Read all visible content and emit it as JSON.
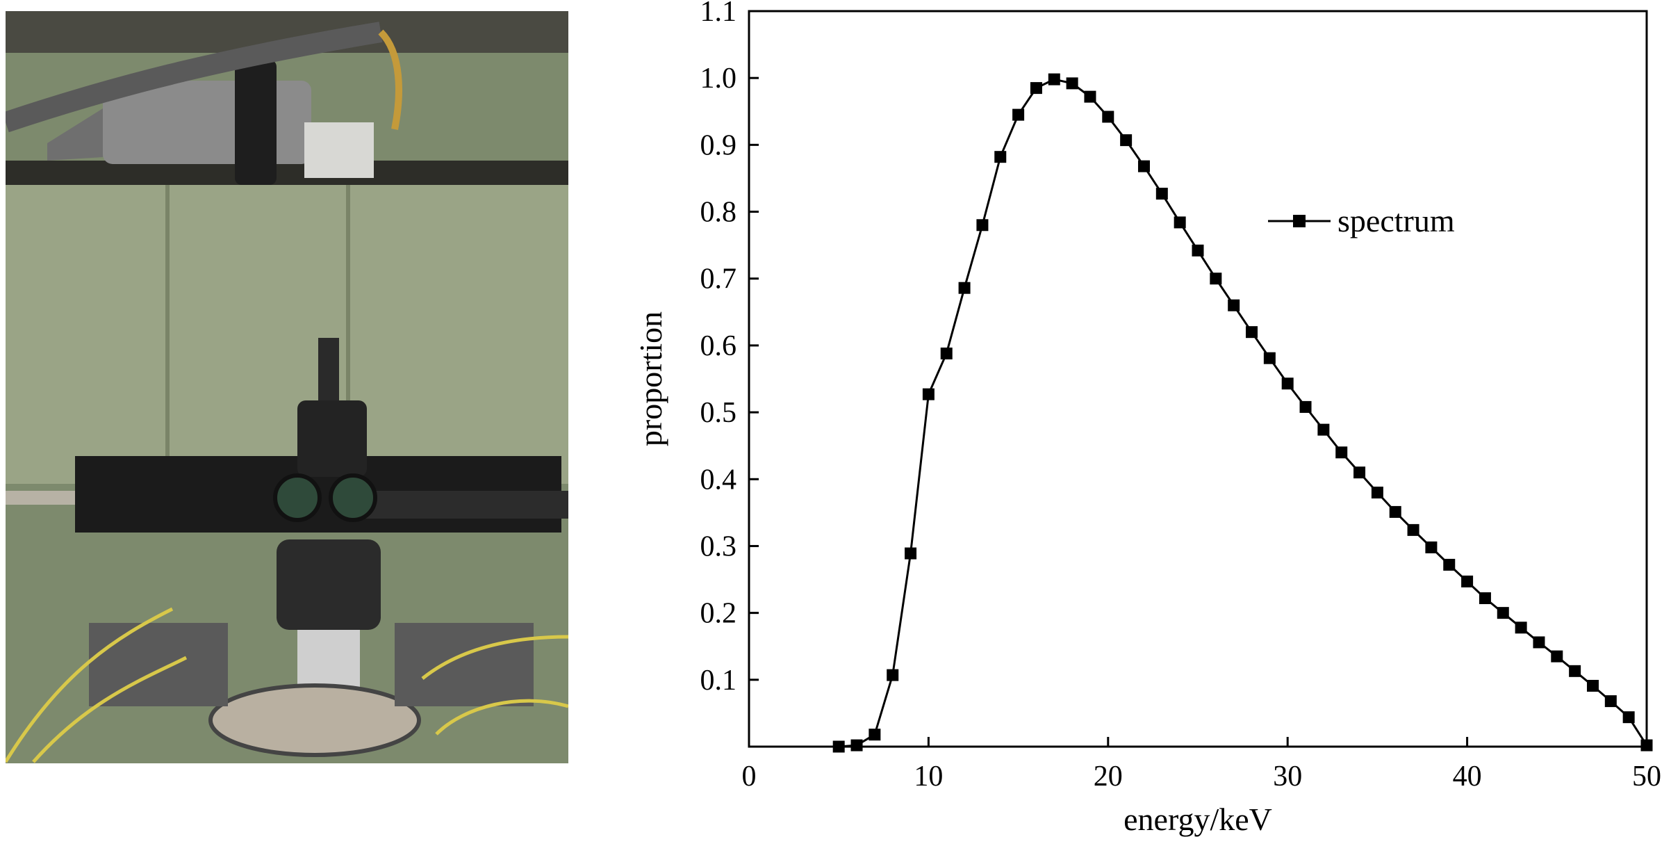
{
  "figure": {
    "photo": {
      "description_icon": "microscope-xray-setup-photo"
    }
  },
  "chart_data": {
    "type": "line",
    "title": "",
    "xlabel": "energy/keV",
    "ylabel": "proportion",
    "xlim": [
      0,
      50
    ],
    "ylim": [
      0,
      1.1
    ],
    "xticks": [
      0,
      10,
      20,
      30,
      40,
      50
    ],
    "xtick_labels": [
      "0",
      "10",
      "20",
      "30",
      "40",
      "50"
    ],
    "yticks": [
      0.1,
      0.2,
      0.3,
      0.4,
      0.5,
      0.6,
      0.7,
      0.8,
      0.9,
      1.0,
      1.1
    ],
    "ytick_labels": [
      "0.1",
      "0.2",
      "0.3",
      "0.4",
      "0.5",
      "0.6",
      "0.7",
      "0.8",
      "0.9",
      "1.0",
      "1.1"
    ],
    "grid": false,
    "legend": {
      "position": "upper-right",
      "marker": "square"
    },
    "series": [
      {
        "name": "spectrum",
        "marker": "square",
        "color": "#000000",
        "x": [
          5,
          6,
          7,
          8,
          9,
          10,
          11,
          12,
          13,
          14,
          15,
          16,
          17,
          18,
          19,
          20,
          21,
          22,
          23,
          24,
          25,
          26,
          27,
          28,
          29,
          30,
          31,
          32,
          33,
          34,
          35,
          36,
          37,
          38,
          39,
          40,
          41,
          42,
          43,
          44,
          45,
          46,
          47,
          48,
          49,
          50
        ],
        "y": [
          0.0,
          0.002,
          0.018,
          0.107,
          0.289,
          0.527,
          0.588,
          0.686,
          0.78,
          0.882,
          0.945,
          0.985,
          0.998,
          0.992,
          0.972,
          0.942,
          0.907,
          0.868,
          0.827,
          0.784,
          0.742,
          0.7,
          0.66,
          0.62,
          0.581,
          0.543,
          0.508,
          0.474,
          0.44,
          0.41,
          0.38,
          0.351,
          0.324,
          0.298,
          0.272,
          0.247,
          0.222,
          0.2,
          0.178,
          0.156,
          0.135,
          0.113,
          0.091,
          0.068,
          0.044,
          0.002
        ]
      }
    ]
  }
}
